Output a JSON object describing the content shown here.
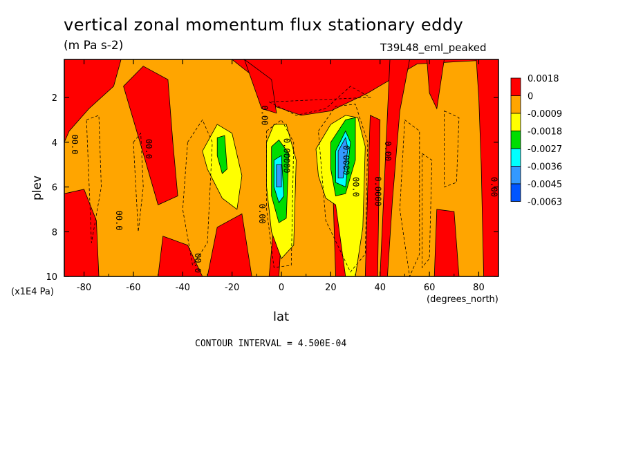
{
  "chart_data": {
    "type": "contour",
    "title": "vertical zonal momentum flux stationary eddy",
    "units": "(m Pa s-2)",
    "run_label": "T39L48_eml_peaked",
    "xlabel": "lat",
    "xunit": "(degrees_north)",
    "ylabel": "plev",
    "yunit": "(x1E4 Pa)",
    "xlim": [
      -88,
      88
    ],
    "ylim": [
      10,
      0.3
    ],
    "xticks": [
      -80,
      -60,
      -40,
      -20,
      0,
      20,
      40,
      60,
      80
    ],
    "yticks": [
      2,
      4,
      6,
      8,
      10
    ],
    "contour_interval_label": "CONTOUR INTERVAL = 4.500E-04",
    "colorbar": {
      "labels": [
        "0.0018",
        "0",
        "-0.0009",
        "-0.0018",
        "-0.0027",
        "-0.0036",
        "-0.0045",
        "-0.0063"
      ],
      "colors": [
        "#ff0000",
        "#ffa500",
        "#ffff00",
        "#00dd00",
        "#00ffff",
        "#3399ff",
        "#0055ff"
      ]
    },
    "contour_labels": [
      {
        "text": "00.0",
        "lat": -84,
        "plev": 4.1
      },
      {
        "text": "00.0",
        "lat": -54,
        "plev": 4.3
      },
      {
        "text": "00.0",
        "lat": -66,
        "plev": 7.5
      },
      {
        "text": "00.0",
        "lat": -34,
        "plev": 9.4
      },
      {
        "text": "0.00",
        "lat": -7,
        "plev": 2.8
      },
      {
        "text": "0.00",
        "lat": -8,
        "plev": 7.2
      },
      {
        "text": "0.00000",
        "lat": 2,
        "plev": 4.6
      },
      {
        "text": "0.0000",
        "lat": 26,
        "plev": 4.8
      },
      {
        "text": "00.0",
        "lat": 30,
        "plev": 6.0
      },
      {
        "text": "0.0000",
        "lat": 39,
        "plev": 6.2
      },
      {
        "text": "0.00",
        "lat": 43,
        "plev": 4.4
      },
      {
        "text": "0.00",
        "lat": 86,
        "plev": 6.0
      }
    ]
  }
}
